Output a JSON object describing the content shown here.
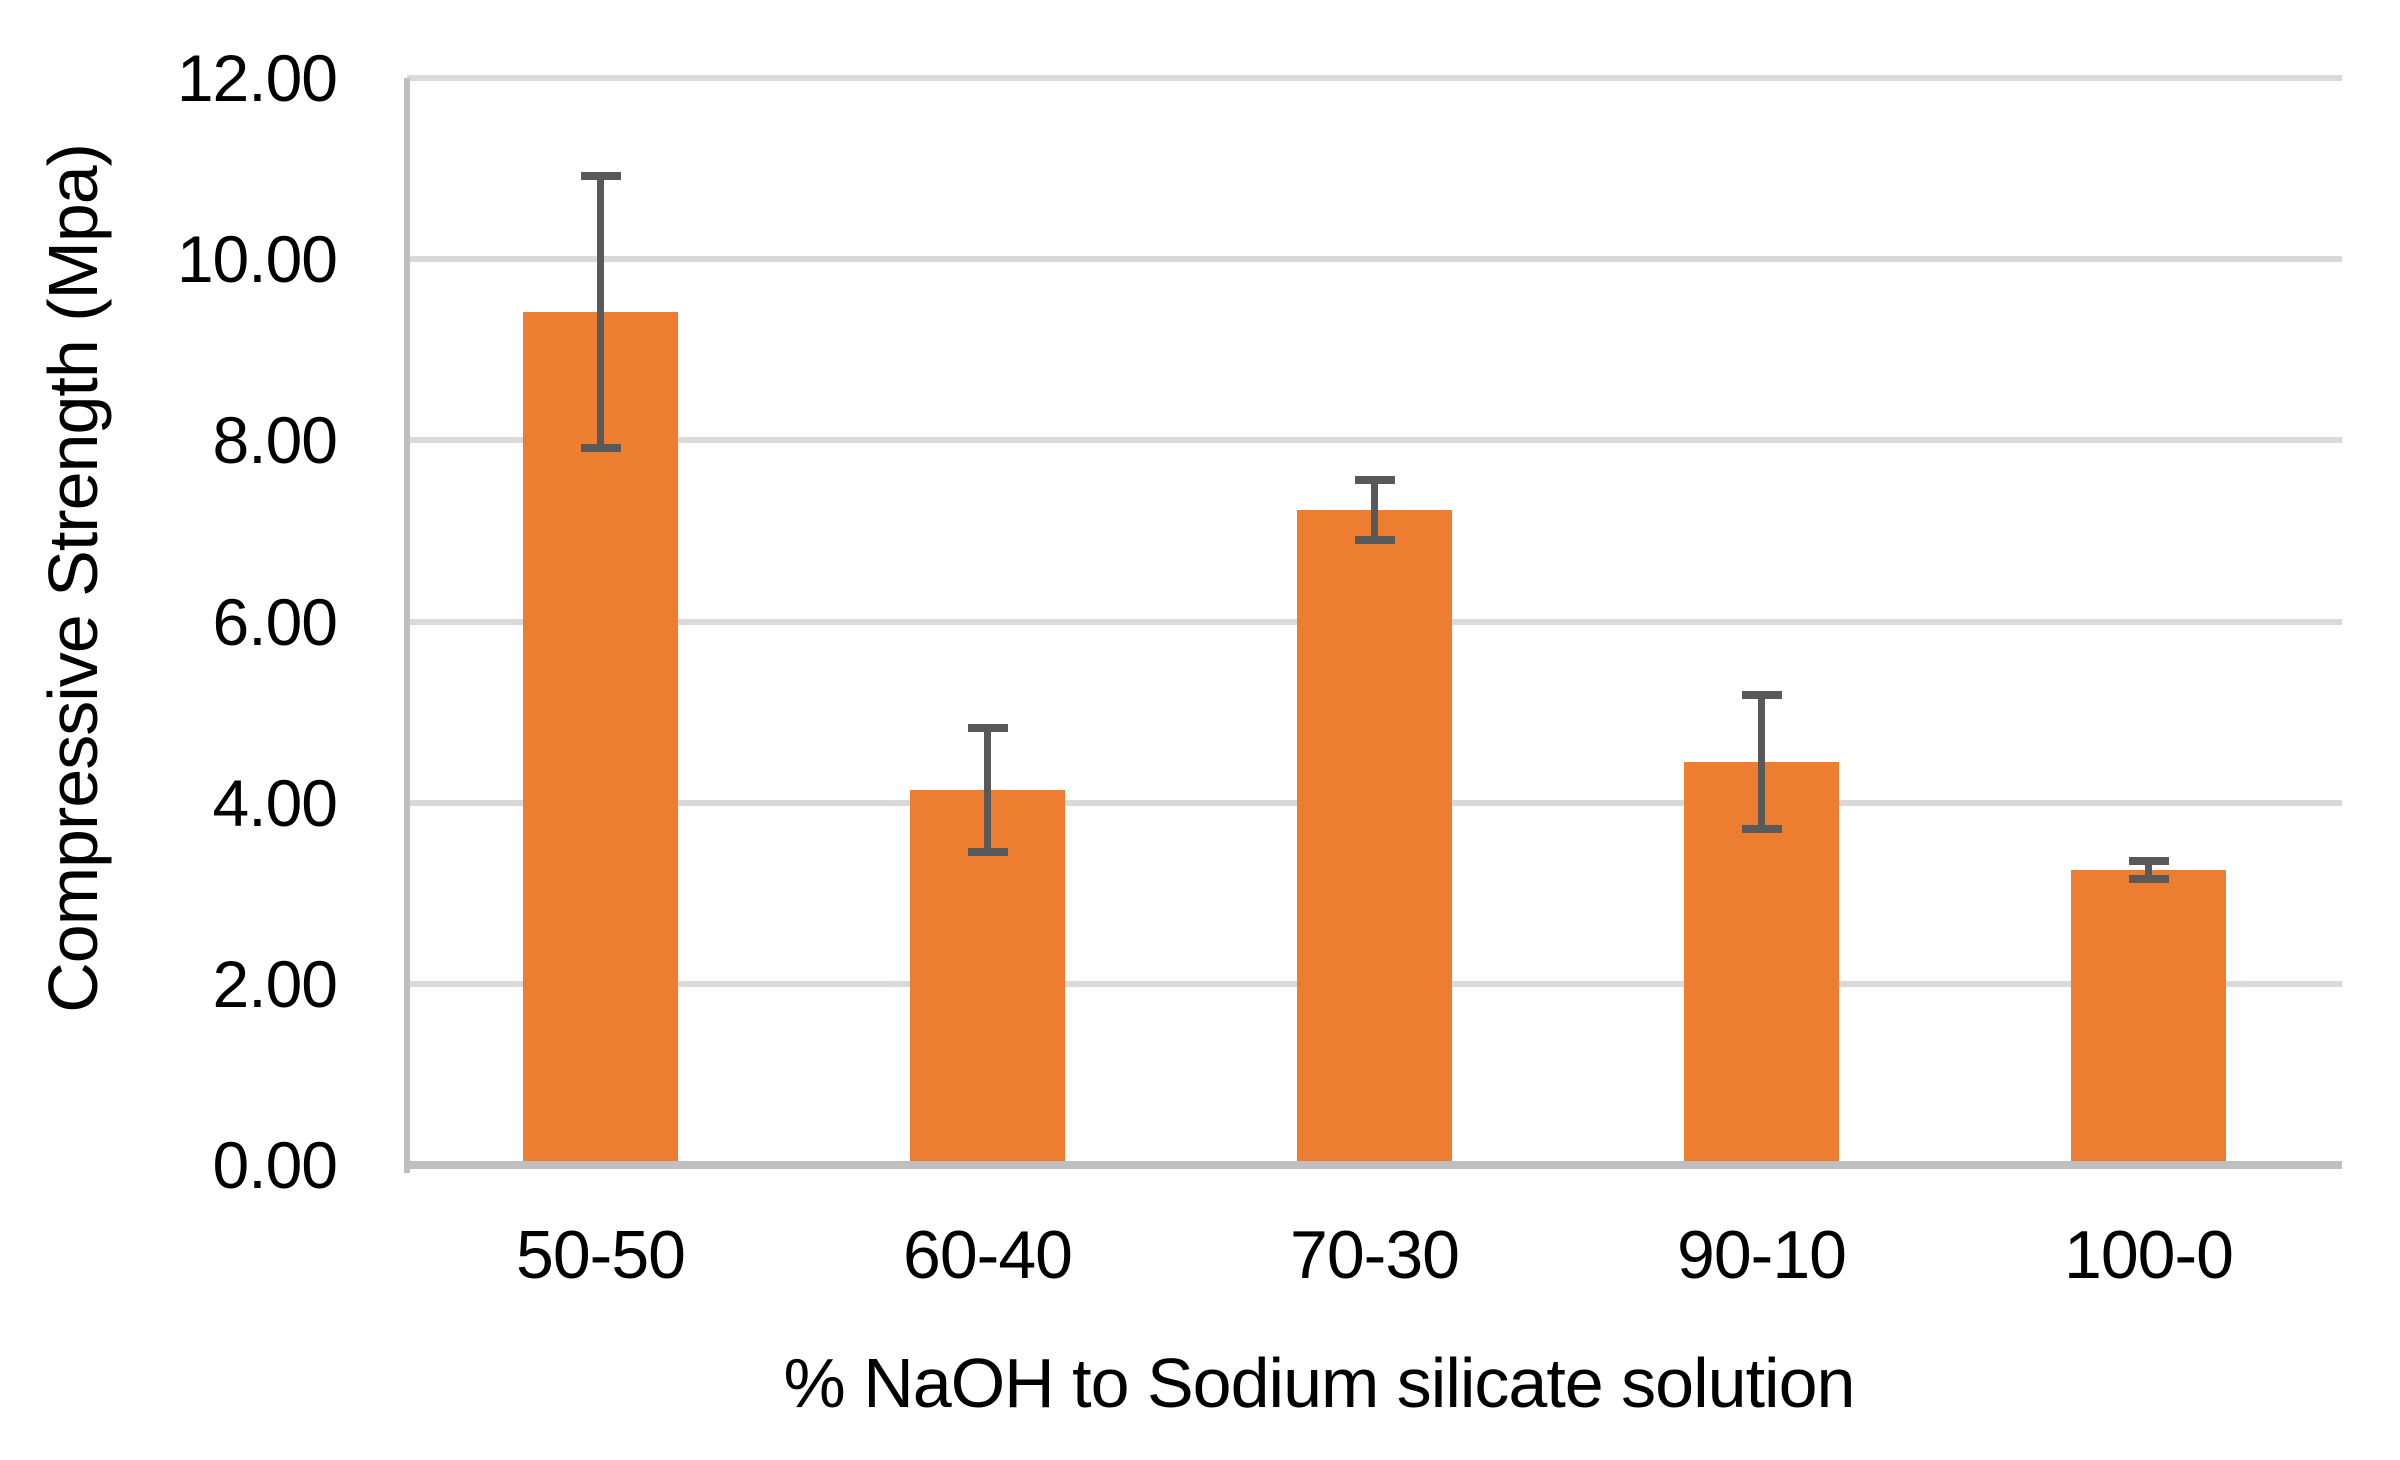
{
  "chart_data": {
    "type": "bar",
    "title": "",
    "xlabel": "% NaOH to Sodium silicate solution",
    "ylabel": "Compressive Strength (Mpa)",
    "categories": [
      "50-50",
      "60-40",
      "70-30",
      "90-10",
      "100-0"
    ],
    "values": [
      9.42,
      4.14,
      7.23,
      4.45,
      3.26
    ],
    "errors": [
      1.5,
      0.68,
      0.33,
      0.74,
      0.1
    ],
    "ylim": [
      0,
      12
    ],
    "yticks": [
      {
        "value": 0,
        "label": "0.00"
      },
      {
        "value": 2,
        "label": "2.00"
      },
      {
        "value": 4,
        "label": "4.00"
      },
      {
        "value": 6,
        "label": "6.00"
      },
      {
        "value": 8,
        "label": "8.00"
      },
      {
        "value": 10,
        "label": "10.00"
      },
      {
        "value": 12,
        "label": "12.00"
      }
    ],
    "grid": "horizontal",
    "legend": "none",
    "bar_color": "#ED7D31",
    "error_bar_color": "#595959",
    "gridline_color": "#D9D9D9",
    "axis_line_color": "#BFBFBF"
  }
}
